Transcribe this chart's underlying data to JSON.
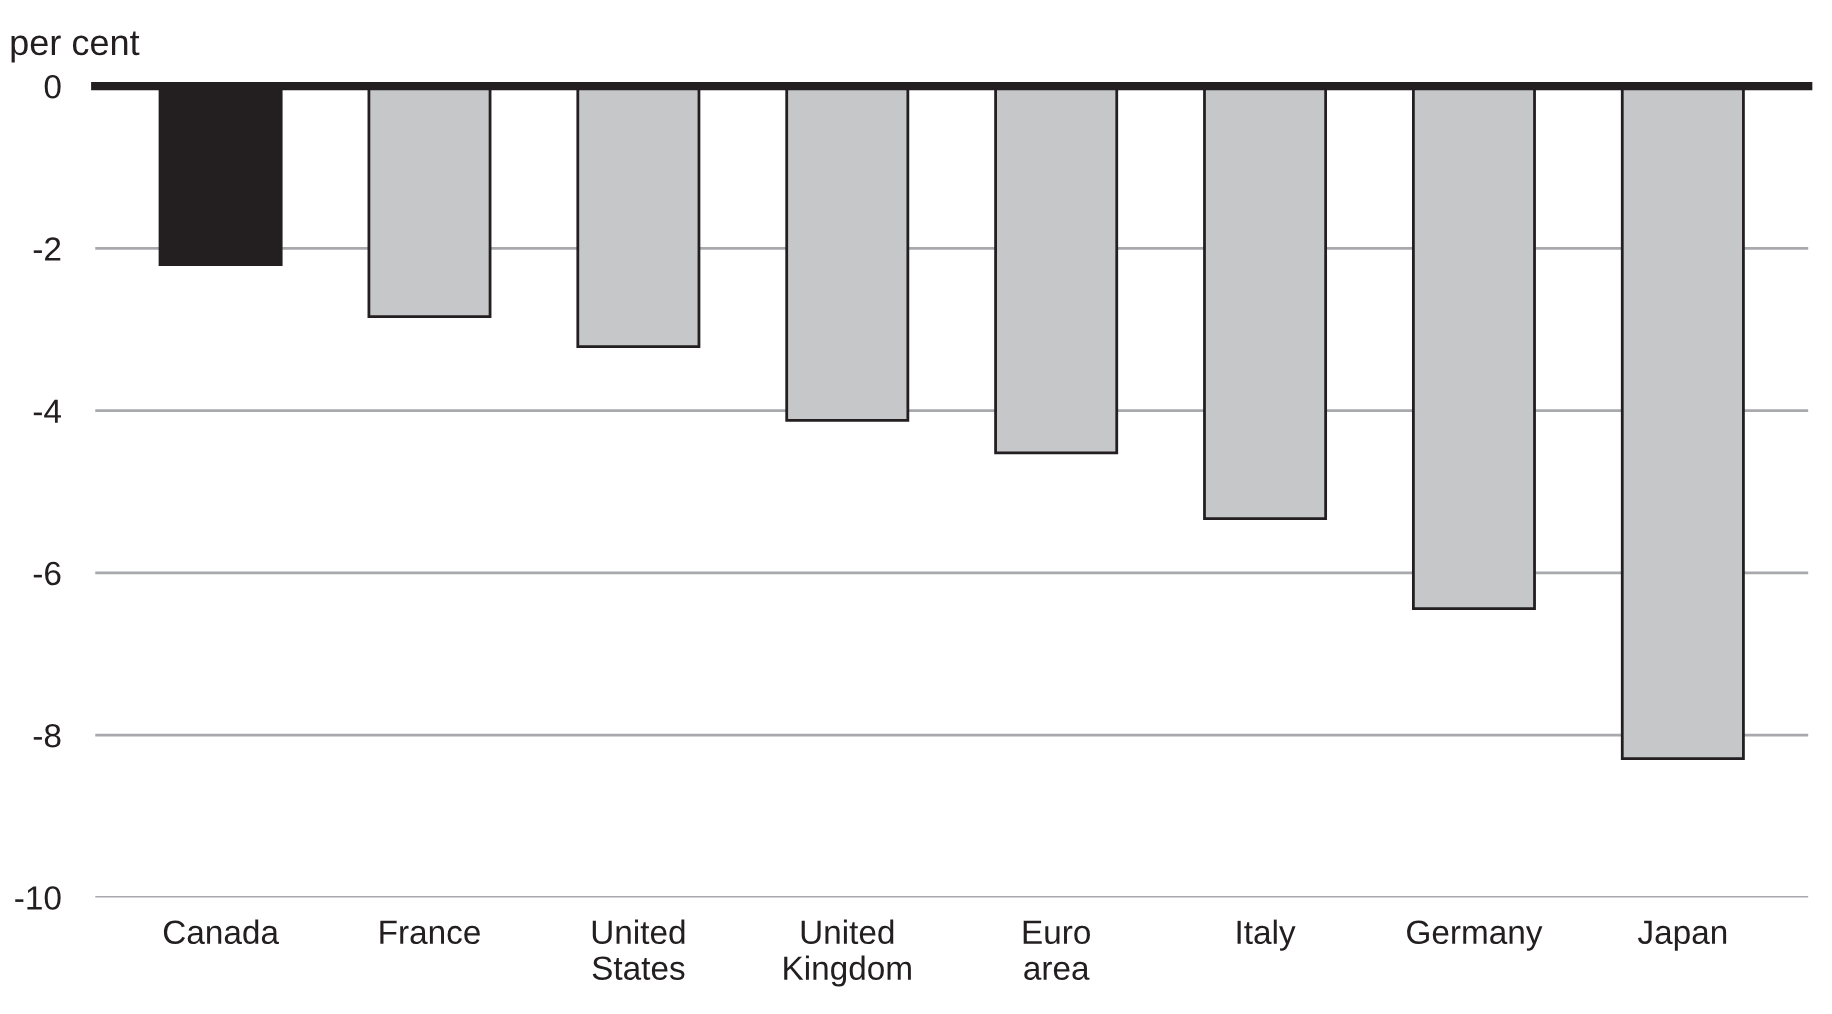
{
  "chart_data": {
    "type": "bar",
    "ylabel": "per cent",
    "categories": [
      "Canada",
      "France",
      "United\nStates",
      "United\nKingdom",
      "Euro\narea",
      "Italy",
      "Germany",
      "Japan"
    ],
    "values": [
      -2.2,
      -2.84,
      -3.21,
      -4.12,
      -4.52,
      -5.33,
      -6.44,
      -8.29
    ],
    "colors": [
      "#231f20",
      "#c6c7c8",
      "#c6c7c8",
      "#c6c7c8",
      "#c6c7c8",
      "#c6c7c8",
      "#c6c7c8",
      "#c6c7c8"
    ],
    "ylim": [
      -10,
      0
    ],
    "yticks": [
      0,
      -2,
      -4,
      -6,
      -8,
      -10
    ],
    "grid": "y",
    "legend": false
  }
}
